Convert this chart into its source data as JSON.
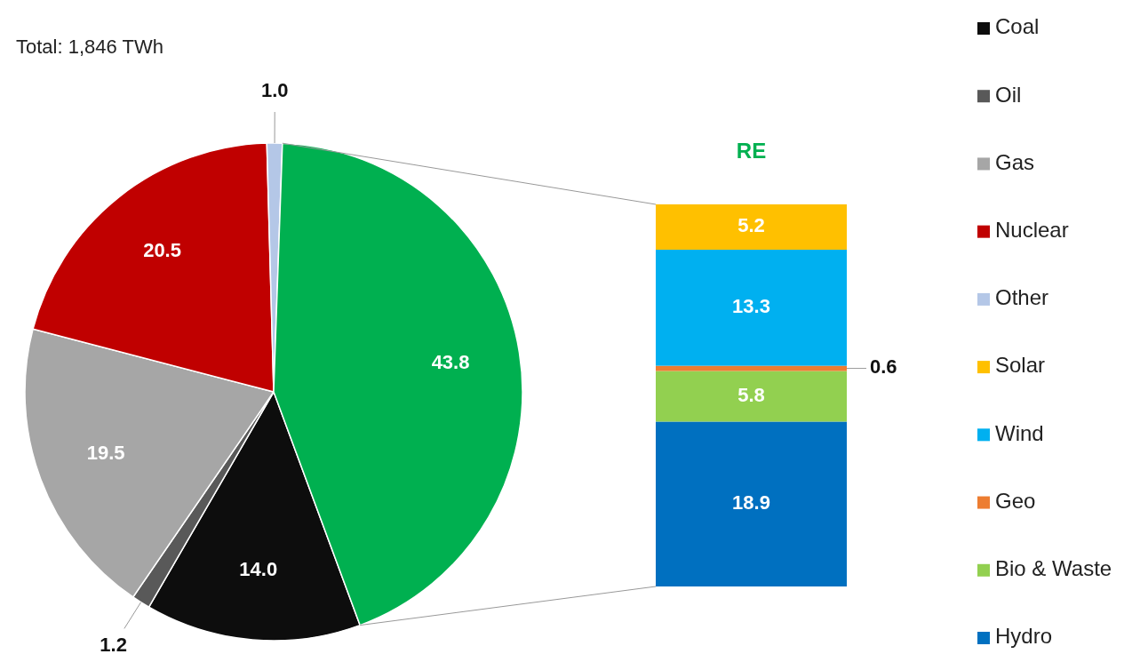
{
  "chart_data": [
    {
      "type": "pie",
      "title": "Total: 1,846 TWh",
      "categories": [
        "Coal",
        "Oil",
        "Gas",
        "Nuclear",
        "Other",
        null
      ],
      "values": [
        14.0,
        1.2,
        19.5,
        20.5,
        1.0,
        43.8
      ],
      "colors": [
        "#0d0d0d",
        "#595959",
        "#a6a6a6",
        "#c00000",
        "#b4c7e7",
        "#00b050"
      ],
      "value_labels": [
        "14.0",
        "1.2",
        "19.5",
        "20.5",
        "1.0",
        "43.8"
      ],
      "legend": "right"
    },
    {
      "type": "bar",
      "title": "RE",
      "stacked": true,
      "categories": [
        null
      ],
      "data_labels": true,
      "legend": "right",
      "series": [
        {
          "name": "Hydro",
          "color": "#0070c0",
          "values": [
            18.9
          ]
        },
        {
          "name": "Bio & Waste",
          "color": "#92d050",
          "values": [
            5.8
          ]
        },
        {
          "name": "Geo",
          "color": "#ed7d31",
          "values": [
            0.6
          ]
        },
        {
          "name": "Wind",
          "color": "#00b0f0",
          "values": [
            13.3
          ]
        },
        {
          "name": "Solar",
          "color": "#ffc000",
          "values": [
            5.2
          ]
        }
      ]
    }
  ]
}
